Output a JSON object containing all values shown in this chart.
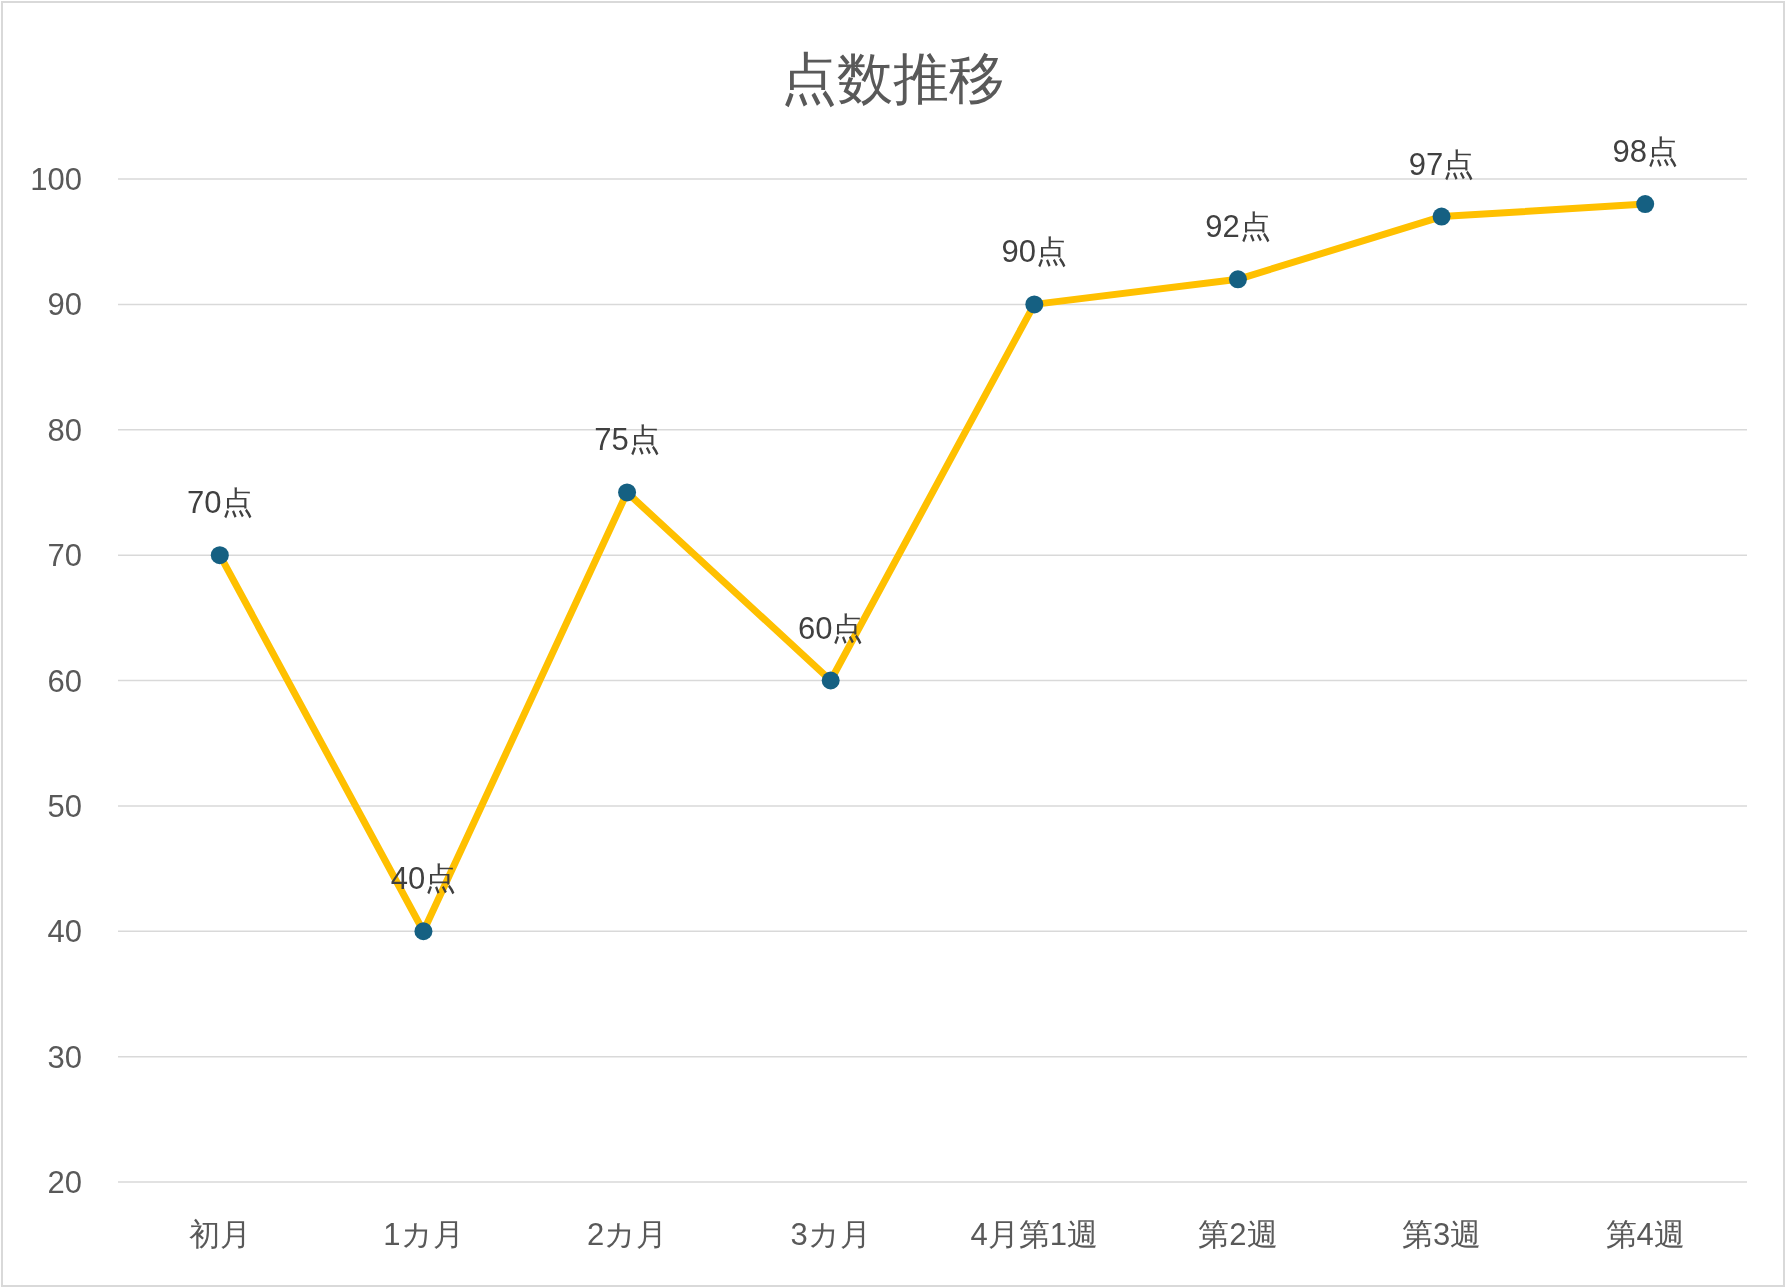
{
  "chart_data": {
    "type": "line",
    "title": "点数推移",
    "categories": [
      "初月",
      "1カ月",
      "2カ月",
      "3カ月",
      "4月第1週",
      "第2週",
      "第3週",
      "第4週"
    ],
    "series": [
      {
        "color": "#ffc000",
        "colors": [
          "#156082",
          "#156082",
          "#156082",
          "#156082",
          "#156082",
          "#156082",
          "#156082",
          "#156082"
        ],
        "values": [
          70,
          40,
          75,
          60,
          90,
          92,
          97,
          98
        ],
        "value_labels": [
          "70点",
          "40点",
          "75点",
          "60点",
          "90点",
          "92点",
          "97点",
          "98点"
        ]
      }
    ],
    "ylim": [
      20,
      100
    ],
    "yticks": [
      20,
      30,
      40,
      50,
      60,
      70,
      80,
      90,
      100
    ],
    "grid": "y",
    "marker": "circle",
    "line_style": "solid"
  }
}
